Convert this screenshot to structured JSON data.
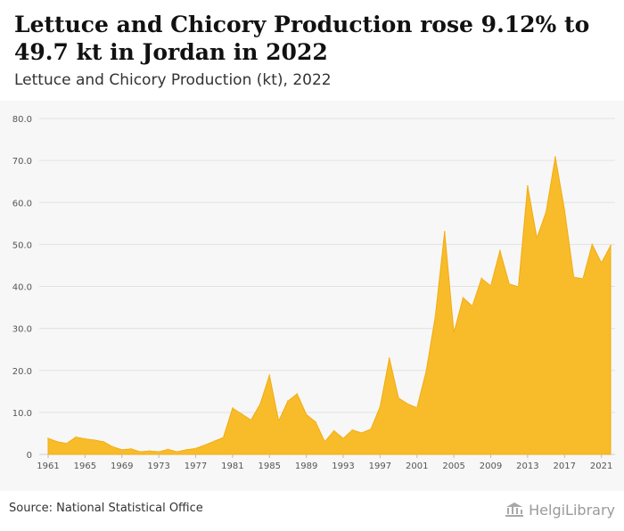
{
  "title": "Lettuce and Chicory Production rose 9.12% to 49.7 kt in Jordan in 2022",
  "subtitle": "Lettuce and Chicory Production (kt), 2022",
  "source": "Source: National Statistical Office",
  "logo_text": "HelgiLibrary",
  "colors": {
    "area": "#f8bc2b",
    "grid": "#e2e2e2",
    "axis_text": "#555555",
    "plot_bg": "#f7f7f7"
  },
  "chart_data": {
    "type": "area",
    "title": "",
    "xlabel": "",
    "ylabel": "",
    "x": [
      1961,
      1962,
      1963,
      1964,
      1965,
      1966,
      1967,
      1968,
      1969,
      1970,
      1971,
      1972,
      1973,
      1974,
      1975,
      1976,
      1977,
      1978,
      1979,
      1980,
      1981,
      1982,
      1983,
      1984,
      1985,
      1986,
      1987,
      1988,
      1989,
      1990,
      1991,
      1992,
      1993,
      1994,
      1995,
      1996,
      1997,
      1998,
      1999,
      2000,
      2001,
      2002,
      2003,
      2004,
      2005,
      2006,
      2007,
      2008,
      2009,
      2010,
      2011,
      2012,
      2013,
      2014,
      2015,
      2016,
      2017,
      2018,
      2019,
      2020,
      2021,
      2022
    ],
    "series": [
      {
        "values": [
          3.8,
          3.0,
          2.6,
          4.1,
          3.7,
          3.4,
          3.0,
          1.8,
          1.1,
          1.3,
          0.6,
          0.8,
          0.6,
          1.2,
          0.6,
          1.1,
          1.4,
          2.2,
          3.1,
          4.0,
          11.0,
          9.6,
          8.2,
          12.0,
          18.8,
          7.9,
          12.7,
          14.4,
          9.5,
          7.7,
          3.0,
          5.6,
          3.8,
          5.8,
          5.1,
          6.0,
          11.3,
          22.9,
          13.4,
          12.0,
          11.1,
          19.8,
          33.0,
          53.0,
          28.9,
          37.3,
          35.3,
          41.9,
          40.1,
          48.5,
          40.6,
          39.9,
          63.9,
          51.5,
          57.7,
          70.8,
          58.2,
          42.2,
          41.8,
          50.0,
          45.6,
          49.7
        ]
      }
    ],
    "ylim": [
      0,
      80
    ],
    "y_ticks": [
      "0",
      "10.0",
      "20.0",
      "30.0",
      "40.0",
      "50.0",
      "60.0",
      "70.0",
      "80.0"
    ],
    "x_tick_labels": [
      "1961",
      "1965",
      "1969",
      "1973",
      "1977",
      "1981",
      "1985",
      "1989",
      "1993",
      "1997",
      "2001",
      "2005",
      "2009",
      "2013",
      "2017",
      "2021"
    ],
    "grid": true,
    "legend": "none"
  }
}
